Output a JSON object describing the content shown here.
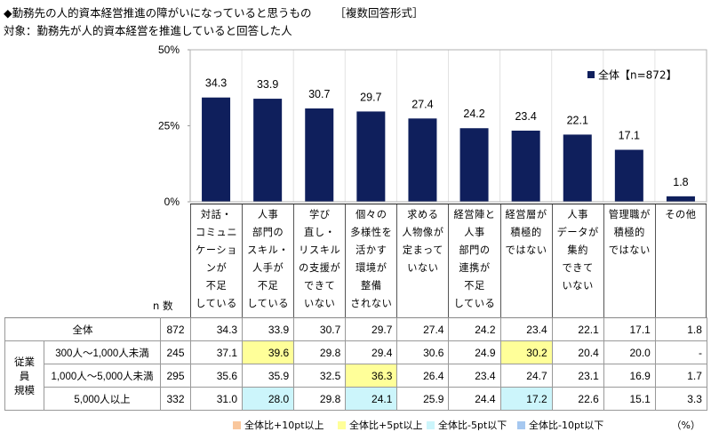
{
  "header": {
    "title": "◆勤務先の人的資本経営推進の障がいになっていると思うもの",
    "format_tag": "［複数回答形式］",
    "subtitle": "対象：勤務先が人的資本経営を推進していると回答した人"
  },
  "colors": {
    "bar": "#0f1f5c",
    "plus10": "#f9c79d",
    "plus5": "#ffff99",
    "minus5": "#ccf5fb",
    "minus10": "#a6c8f0"
  },
  "chart_data": {
    "type": "bar",
    "title": "勤務先の人的資本経営推進の障がいになっていると思うもの",
    "categories": [
      [
        "対話・",
        "コミュニ",
        "ケーショ",
        "ンが",
        "不足",
        "している"
      ],
      [
        "人事",
        "部門の",
        "スキル・",
        "人手が",
        "不足",
        "している"
      ],
      [
        "学び",
        "直し・",
        "リスキル",
        "の支援が",
        "できて",
        "いない"
      ],
      [
        "個々の",
        "多様性を",
        "活かす",
        "環境が",
        "整備",
        "されない"
      ],
      [
        "求める",
        "人物像が",
        "定まって",
        "いない"
      ],
      [
        "経営陣と",
        "人事",
        "部門の",
        "連携が",
        "不足",
        "している"
      ],
      [
        "経営層が",
        "積極的",
        "ではない"
      ],
      [
        "人事",
        "データが",
        "集約",
        "できて",
        "いない"
      ],
      [
        "管理職が",
        "積極的",
        "ではない"
      ],
      [
        "その他"
      ]
    ],
    "series": [
      {
        "name": "全体【n=872】",
        "values": [
          34.3,
          33.9,
          30.7,
          29.7,
          27.4,
          24.2,
          23.4,
          22.1,
          17.1,
          1.8
        ]
      }
    ],
    "value_labels": [
      "34.3",
      "33.9",
      "30.7",
      "29.7",
      "27.4",
      "24.2",
      "23.4",
      "22.1",
      "17.1",
      "1.8"
    ],
    "yticks": [
      "0%",
      "25%",
      "50%"
    ],
    "ytick_values": [
      0,
      25,
      50
    ],
    "ylim": [
      0,
      50
    ],
    "legend": "top-right",
    "xlabel": "",
    "ylabel": ""
  },
  "table": {
    "n_header": "n 数",
    "group_label": [
      "従業員",
      "規模"
    ],
    "unit": "(%)",
    "rows": [
      {
        "label": "全体",
        "n": "872",
        "values": [
          "34.3",
          "33.9",
          "30.7",
          "29.7",
          "27.4",
          "24.2",
          "23.4",
          "22.1",
          "17.1",
          "1.8"
        ],
        "hl": [
          "",
          "",
          "",
          "",
          "",
          "",
          "",
          "",
          "",
          ""
        ]
      },
      {
        "label": "300人～1,000人未満",
        "n": "245",
        "values": [
          "37.1",
          "39.6",
          "29.8",
          "29.4",
          "30.6",
          "24.9",
          "30.2",
          "20.4",
          "20.0",
          "-"
        ],
        "hl": [
          "",
          "y",
          "",
          "",
          "",
          "",
          "y",
          "",
          "",
          ""
        ]
      },
      {
        "label": "1,000人～5,000人未満",
        "n": "295",
        "values": [
          "35.6",
          "35.9",
          "32.5",
          "36.3",
          "26.4",
          "23.4",
          "24.7",
          "23.1",
          "16.9",
          "1.7"
        ],
        "hl": [
          "",
          "",
          "",
          "y",
          "",
          "",
          "",
          "",
          "",
          ""
        ]
      },
      {
        "label": "5,000人以上",
        "n": "332",
        "values": [
          "31.0",
          "28.0",
          "29.8",
          "24.1",
          "25.9",
          "24.4",
          "17.2",
          "22.6",
          "15.1",
          "3.3"
        ],
        "hl": [
          "",
          "c",
          "",
          "c",
          "",
          "",
          "c",
          "",
          "",
          ""
        ]
      }
    ]
  },
  "footer": {
    "legend": [
      {
        "label": "全体比+10pt以上",
        "key": "plus10"
      },
      {
        "label": "全体比+5pt以上",
        "key": "plus5"
      },
      {
        "label": "全体比-5pt以下",
        "key": "minus5"
      },
      {
        "label": "全体比-10pt以下",
        "key": "minus10"
      }
    ],
    "unit": "（%）"
  }
}
